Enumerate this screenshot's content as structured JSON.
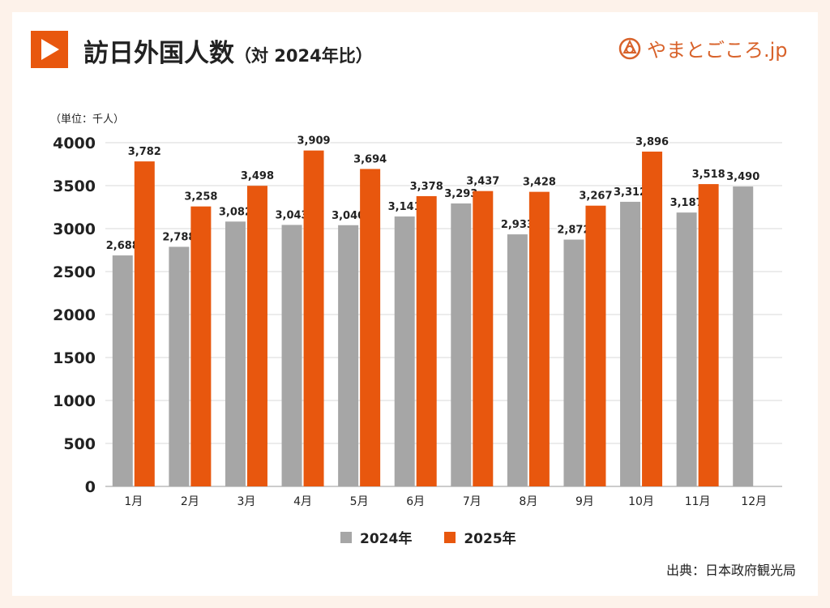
{
  "header": {
    "title": "訪日外国人数",
    "subtitle": "（対 2024年比）",
    "logo_text": "やまとごころ.jp"
  },
  "source": "出典：日本政府観光局",
  "colors": {
    "accent": "#e8570e",
    "series_2024": "#a6a6a6",
    "series_2025": "#e8570e",
    "grid": "#d9d9d9"
  },
  "chart_data": {
    "type": "bar",
    "unit_label": "（単位：千人）",
    "categories": [
      "1月",
      "2月",
      "3月",
      "4月",
      "5月",
      "6月",
      "7月",
      "8月",
      "9月",
      "10月",
      "11月",
      "12月"
    ],
    "series": [
      {
        "name": "2024年",
        "values": [
          2688,
          2788,
          3082,
          3043,
          3040,
          3141,
          3293,
          2933,
          2872,
          3312,
          3187,
          3490
        ],
        "labels": [
          "2,688",
          "2,788",
          "3,082",
          "3,043",
          "3,040",
          "3,141",
          "3,293",
          "2,933",
          "2,872",
          "3,312",
          "3,187",
          "3,490"
        ]
      },
      {
        "name": "2025年",
        "values": [
          3782,
          3258,
          3498,
          3909,
          3694,
          3378,
          3437,
          3428,
          3267,
          3896,
          3518,
          null
        ],
        "labels": [
          "3,782",
          "3,258",
          "3,498",
          "3,909",
          "3,694",
          "3,378",
          "3,437",
          "3,428",
          "3,267",
          "3,896",
          "3,518",
          null
        ]
      }
    ],
    "yticks": [
      "0",
      "500",
      "1000",
      "1500",
      "2000",
      "2500",
      "3000",
      "3500",
      "4000"
    ],
    "ylim": [
      0,
      4000
    ],
    "grid": true,
    "legend": "bottom"
  }
}
